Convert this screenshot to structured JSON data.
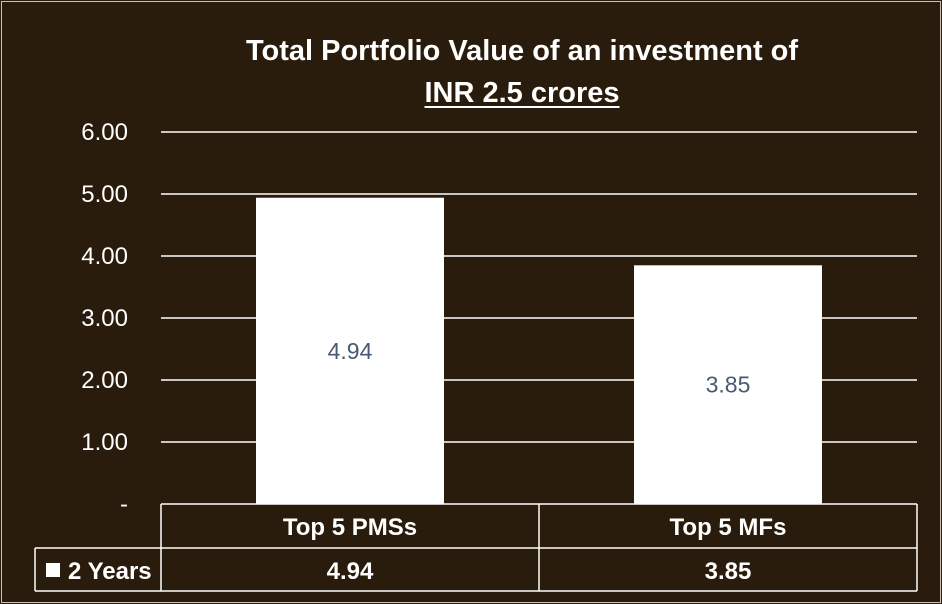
{
  "chart_data": {
    "type": "bar",
    "title_line1": "Total Portfolio Value of an investment of",
    "title_line2": "INR 2.5 crores",
    "categories": [
      "Top 5 PMSs",
      "Top 5 MFs"
    ],
    "series": [
      {
        "name": "2 Years",
        "values": [
          4.94,
          3.85
        ]
      }
    ],
    "data_labels": [
      "4.94",
      "3.85"
    ],
    "table_values": [
      "4.94",
      "3.85"
    ],
    "y_ticks": [
      {
        "value": 0,
        "label": "-"
      },
      {
        "value": 1,
        "label": "1.00"
      },
      {
        "value": 2,
        "label": "2.00"
      },
      {
        "value": 3,
        "label": "3.00"
      },
      {
        "value": 4,
        "label": "4.00"
      },
      {
        "value": 5,
        "label": "5.00"
      },
      {
        "value": 6,
        "label": "6.00"
      }
    ],
    "ylim": [
      0,
      6
    ],
    "grid": true,
    "legend": "data-table",
    "colors": {
      "background": "#2a1c0c",
      "bar": "#ffffff",
      "text": "#ffffff",
      "data_label": "#4a5a72",
      "grid": "#ffffff"
    }
  }
}
